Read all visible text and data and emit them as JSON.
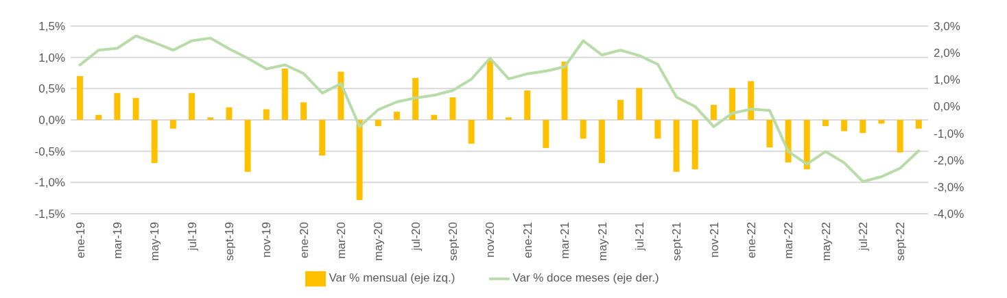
{
  "chart_data": {
    "type": "bar",
    "categories": [
      "ene-19",
      null,
      "mar-19",
      null,
      "may-19",
      null,
      "jul-19",
      null,
      "sept-19",
      null,
      "nov-19",
      null,
      "ene-20",
      null,
      "mar-20",
      null,
      "may-20",
      null,
      "jul-20",
      null,
      "sept-20",
      null,
      "nov-20",
      null,
      "ene-21",
      null,
      "mar-21",
      null,
      "may-21",
      null,
      "jul-21",
      null,
      "sept-21",
      null,
      "nov-21",
      null,
      "ene-22",
      null,
      "mar-22",
      null,
      "may-22",
      null,
      "jul-22",
      null,
      "sept-22",
      null
    ],
    "series": [
      {
        "name": "Var % mensual (eje izq.)",
        "color": "#ffc000",
        "values": [
          0.7,
          0.08,
          0.43,
          0.35,
          -0.69,
          -0.14,
          0.43,
          0.04,
          0.2,
          -0.83,
          0.17,
          0.82,
          0.28,
          -0.57,
          0.77,
          -1.28,
          -0.1,
          0.13,
          0.67,
          0.08,
          0.36,
          -0.38,
          0.96,
          0.04,
          0.47,
          -0.45,
          0.93,
          -0.3,
          -0.69,
          0.32,
          0.51,
          -0.3,
          -0.83,
          -0.79,
          0.24,
          0.51,
          0.62,
          -0.44,
          -0.68,
          -0.79,
          -0.1,
          -0.18,
          -0.21,
          -0.06,
          -0.52,
          -0.14
        ]
      },
      {
        "name": "Var % doce meses (eje der.)",
        "type": "line",
        "axis": "y2",
        "color": "#b7dca8",
        "values": [
          1.55,
          2.1,
          2.17,
          2.63,
          2.38,
          2.1,
          2.45,
          2.55,
          2.15,
          1.8,
          1.4,
          1.55,
          1.23,
          0.5,
          0.85,
          -0.75,
          -0.12,
          0.17,
          0.32,
          0.42,
          0.6,
          1.02,
          1.8,
          1.03,
          1.22,
          1.32,
          1.48,
          2.45,
          1.92,
          2.1,
          1.9,
          1.57,
          0.35,
          0.0,
          -0.75,
          -0.25,
          -0.1,
          -0.15,
          -1.68,
          -2.15,
          -1.68,
          -2.1,
          -2.8,
          -2.62,
          -2.3,
          -1.65
        ]
      }
    ],
    "ylim": [
      -1.5,
      1.5
    ],
    "yticks": [
      {
        "value": -1.5,
        "label": "-1,5%"
      },
      {
        "value": -1.0,
        "label": "-1,0%"
      },
      {
        "value": -0.5,
        "label": "-0,5%"
      },
      {
        "value": 0,
        "label": "0,0%"
      },
      {
        "value": 0.5,
        "label": "0,5%"
      },
      {
        "value": 1.0,
        "label": "1,0%"
      },
      {
        "value": 1.5,
        "label": "1,5%"
      }
    ],
    "y2lim": [
      -4,
      3
    ],
    "y2ticks": [
      {
        "value": -4,
        "label": "-4,0%"
      },
      {
        "value": -3,
        "label": "-3,0%"
      },
      {
        "value": -2,
        "label": "-2,0%"
      },
      {
        "value": -1,
        "label": "-1,0%"
      },
      {
        "value": 0,
        "label": "0,0%"
      },
      {
        "value": 1,
        "label": "1,0%"
      },
      {
        "value": 2,
        "label": "2,0%"
      },
      {
        "value": 3,
        "label": "3,0%"
      }
    ],
    "grid": "y",
    "legend": "bottom",
    "marker": "none",
    "line_style": "solid"
  }
}
